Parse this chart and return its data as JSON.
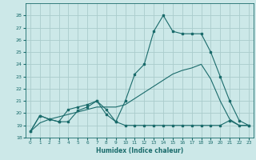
{
  "xlabel": "Humidex (Indice chaleur)",
  "background_color": "#cce8e8",
  "grid_color": "#aacccc",
  "line_color": "#1a6b6b",
  "xlim": [
    -0.5,
    23.5
  ],
  "ylim": [
    18,
    29
  ],
  "yticks": [
    18,
    19,
    20,
    21,
    22,
    23,
    24,
    25,
    26,
    27,
    28
  ],
  "xticks": [
    0,
    1,
    2,
    3,
    4,
    5,
    6,
    7,
    8,
    9,
    10,
    11,
    12,
    13,
    14,
    15,
    16,
    17,
    18,
    19,
    20,
    21,
    22,
    23
  ],
  "series1_x": [
    0,
    1,
    2,
    3,
    4,
    5,
    6,
    7,
    8,
    9,
    10,
    11,
    12,
    13,
    14,
    15,
    16,
    17,
    18,
    19,
    20,
    21,
    22,
    23
  ],
  "series1_y": [
    18.5,
    19.8,
    19.5,
    19.3,
    19.3,
    20.2,
    20.5,
    21.0,
    19.9,
    19.3,
    21.0,
    23.2,
    24.0,
    26.7,
    28.0,
    26.7,
    26.5,
    26.5,
    26.5,
    25.0,
    23.0,
    21.0,
    19.4,
    19.0
  ],
  "series2_x": [
    0,
    1,
    2,
    3,
    4,
    5,
    6,
    7,
    8,
    9,
    10,
    11,
    12,
    13,
    14,
    15,
    16,
    17,
    18,
    19,
    20,
    21,
    22,
    23
  ],
  "series2_y": [
    18.5,
    19.8,
    19.5,
    19.3,
    20.3,
    20.5,
    20.7,
    21.0,
    20.3,
    19.3,
    19.0,
    19.0,
    19.0,
    19.0,
    19.0,
    19.0,
    19.0,
    19.0,
    19.0,
    19.0,
    19.0,
    19.4,
    19.0,
    19.0
  ],
  "series3_x": [
    0,
    1,
    2,
    3,
    4,
    5,
    6,
    7,
    8,
    9,
    10,
    11,
    12,
    13,
    14,
    15,
    16,
    17,
    18,
    19,
    20,
    21,
    22,
    23
  ],
  "series3_y": [
    18.5,
    19.2,
    19.5,
    19.7,
    19.9,
    20.1,
    20.3,
    20.5,
    20.5,
    20.5,
    20.7,
    21.2,
    21.7,
    22.2,
    22.7,
    23.2,
    23.5,
    23.7,
    24.0,
    22.8,
    21.0,
    19.5,
    19.0,
    19.0
  ]
}
